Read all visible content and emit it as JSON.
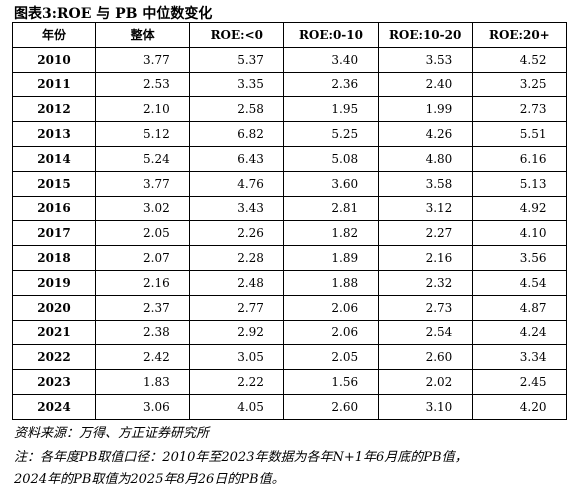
{
  "title": "图表3:ROE 与 PB 中位数变化",
  "table": {
    "header": [
      "年份",
      "整体",
      "ROE:<0",
      "ROE:0-10",
      "ROE:10-20",
      "ROE:20+"
    ],
    "rows": [
      [
        "2010",
        "3.77",
        "5.37",
        "3.40",
        "3.53",
        "4.52"
      ],
      [
        "2011",
        "2.53",
        "3.35",
        "2.36",
        "2.40",
        "3.25"
      ],
      [
        "2012",
        "2.10",
        "2.58",
        "1.95",
        "1.99",
        "2.73"
      ],
      [
        "2013",
        "5.12",
        "6.82",
        "5.25",
        "4.26",
        "5.51"
      ],
      [
        "2014",
        "5.24",
        "6.43",
        "5.08",
        "4.80",
        "6.16"
      ],
      [
        "2015",
        "3.77",
        "4.76",
        "3.60",
        "3.58",
        "5.13"
      ],
      [
        "2016",
        "3.02",
        "3.43",
        "2.81",
        "3.12",
        "4.92"
      ],
      [
        "2017",
        "2.05",
        "2.26",
        "1.82",
        "2.27",
        "4.10"
      ],
      [
        "2018",
        "2.07",
        "2.28",
        "1.89",
        "2.16",
        "3.56"
      ],
      [
        "2019",
        "2.16",
        "2.48",
        "1.88",
        "2.32",
        "4.54"
      ],
      [
        "2020",
        "2.37",
        "2.77",
        "2.06",
        "2.73",
        "4.87"
      ],
      [
        "2021",
        "2.38",
        "2.92",
        "2.06",
        "2.54",
        "4.24"
      ],
      [
        "2022",
        "2.42",
        "3.05",
        "2.05",
        "2.60",
        "3.34"
      ],
      [
        "2023",
        "1.83",
        "2.22",
        "1.56",
        "2.02",
        "2.45"
      ],
      [
        "2024",
        "3.06",
        "4.05",
        "2.60",
        "3.10",
        "4.20"
      ]
    ]
  },
  "source": "资料来源：万得、方正证券研究所",
  "note": [
    "注：各年度PB取值口径：2010年至2023年数据为各年N+1年6月底的PB值，",
    "2024年的PB取值为2025年8月26日的PB值。"
  ]
}
